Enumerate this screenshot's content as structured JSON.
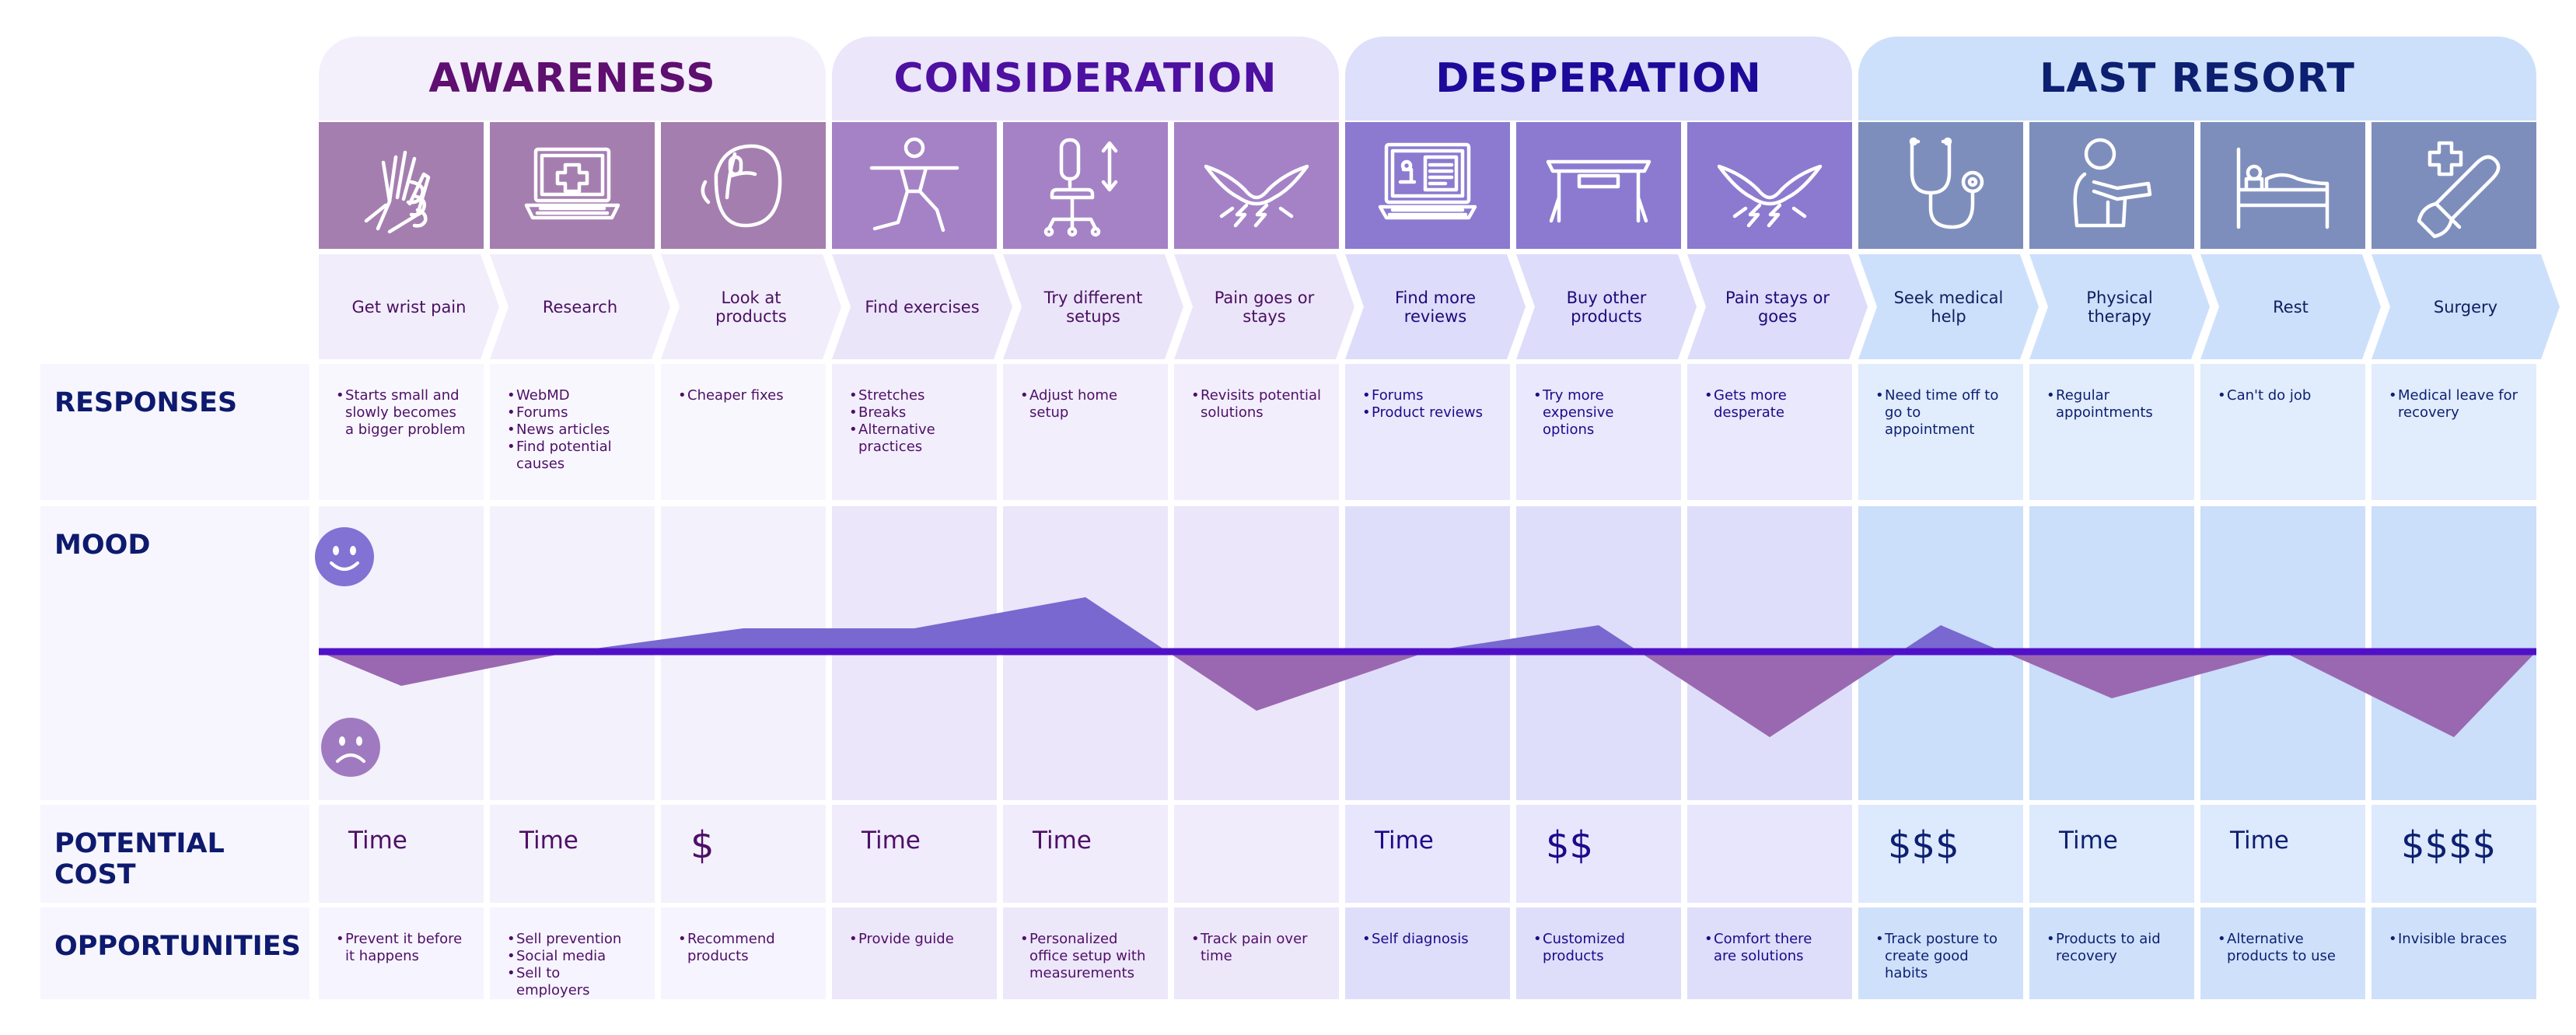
{
  "colors": {
    "awareness_text": "#5e0f6f",
    "consideration_text": "#4d10a0",
    "desperation_text": "#1d0a9a",
    "last_resort_text": "#0c1f70",
    "row_label": "#0d1a6e",
    "mood_line": "#5010c8",
    "mood_positive_fill": "#7868d0",
    "mood_negative_fill": "#9a68b0"
  },
  "phases": [
    {
      "title": "AWARENESS"
    },
    {
      "title": "CONSIDERATION"
    },
    {
      "title": "DESPERATION"
    },
    {
      "title": "LAST RESORT"
    }
  ],
  "row_labels": {
    "responses": "RESPONSES",
    "mood": "MOOD",
    "potential_cost": "POTENTIAL COST",
    "opportunities": "OPPORTUNITIES"
  },
  "mood_faces": {
    "happy": "smiley-face-icon",
    "sad": "frowny-face-icon"
  },
  "steps": [
    {
      "phase": 0,
      "icon": "hand-wrist-icon",
      "label": "Get wrist pain",
      "responses": [
        "Starts small and slowly becomes a bigger problem"
      ],
      "mood": -0.22,
      "cost": "Time",
      "opportunities": [
        "Prevent it before it happens"
      ]
    },
    {
      "phase": 0,
      "icon": "laptop-medical-icon",
      "label": "Research",
      "responses": [
        "WebMD",
        "Forums",
        "News articles",
        "Find potential causes"
      ],
      "mood": 0.0,
      "cost": "Time",
      "opportunities": [
        "Sell prevention",
        "Social media",
        "Sell to employers"
      ]
    },
    {
      "phase": 0,
      "icon": "ergonomic-mouse-icon",
      "label": "Look at products",
      "responses": [
        "Cheaper fixes"
      ],
      "mood": 0.15,
      "cost": "$",
      "opportunities": [
        "Recommend products"
      ]
    },
    {
      "phase": 1,
      "icon": "stretching-person-icon",
      "label": "Find exercises",
      "responses": [
        "Stretches",
        "Breaks",
        "Alternative practices"
      ],
      "mood": 0.15,
      "cost": "Time",
      "opportunities": [
        "Provide guide"
      ]
    },
    {
      "phase": 1,
      "icon": "adjustable-chair-icon",
      "label": "Try different setups",
      "responses": [
        "Adjust home setup"
      ],
      "mood": 0.35,
      "cost": "Time",
      "opportunities": [
        "Personalized office setup with measurements"
      ]
    },
    {
      "phase": 1,
      "icon": "pain-flare-icon",
      "label": "Pain goes or stays",
      "responses": [
        "Revisits potential solutions"
      ],
      "mood": -0.38,
      "cost": "",
      "opportunities": [
        "Track pain over time"
      ]
    },
    {
      "phase": 2,
      "icon": "computer-reviews-icon",
      "label": "Find more reviews",
      "responses": [
        "Forums",
        "Product reviews"
      ],
      "mood": 0.0,
      "cost": "Time",
      "opportunities": [
        "Self diagnosis"
      ]
    },
    {
      "phase": 2,
      "icon": "desk-icon",
      "label": "Buy other products",
      "responses": [
        "Try more expensive options"
      ],
      "mood": 0.17,
      "cost": "$$",
      "opportunities": [
        "Customized products"
      ]
    },
    {
      "phase": 2,
      "icon": "pain-flare-icon",
      "label": "Pain stays or goes",
      "responses": [
        "Gets more desperate"
      ],
      "mood": -0.55,
      "cost": "",
      "opportunities": [
        "Comfort there are solutions"
      ]
    },
    {
      "phase": 3,
      "icon": "stethoscope-icon",
      "label": "Seek medical help",
      "responses": [
        "Need time off to go to appointment"
      ],
      "mood": 0.17,
      "cost": "$$$",
      "opportunities": [
        "Track posture to create good habits"
      ]
    },
    {
      "phase": 3,
      "icon": "physical-therapy-icon",
      "label": "Physical therapy",
      "responses": [
        "Regular appointments"
      ],
      "mood": -0.3,
      "cost": "Time",
      "opportunities": [
        "Products to aid recovery"
      ]
    },
    {
      "phase": 3,
      "icon": "bed-rest-icon",
      "label": "Rest",
      "responses": [
        "Can't do job"
      ],
      "mood": 0.0,
      "cost": "Time",
      "opportunities": [
        "Alternative products to use"
      ]
    },
    {
      "phase": 3,
      "icon": "scalpel-icon",
      "label": "Surgery",
      "responses": [
        "Medical leave for recovery"
      ],
      "mood": -0.55,
      "cost": "$$$$",
      "opportunities": [
        "Invisible braces"
      ]
    }
  ]
}
